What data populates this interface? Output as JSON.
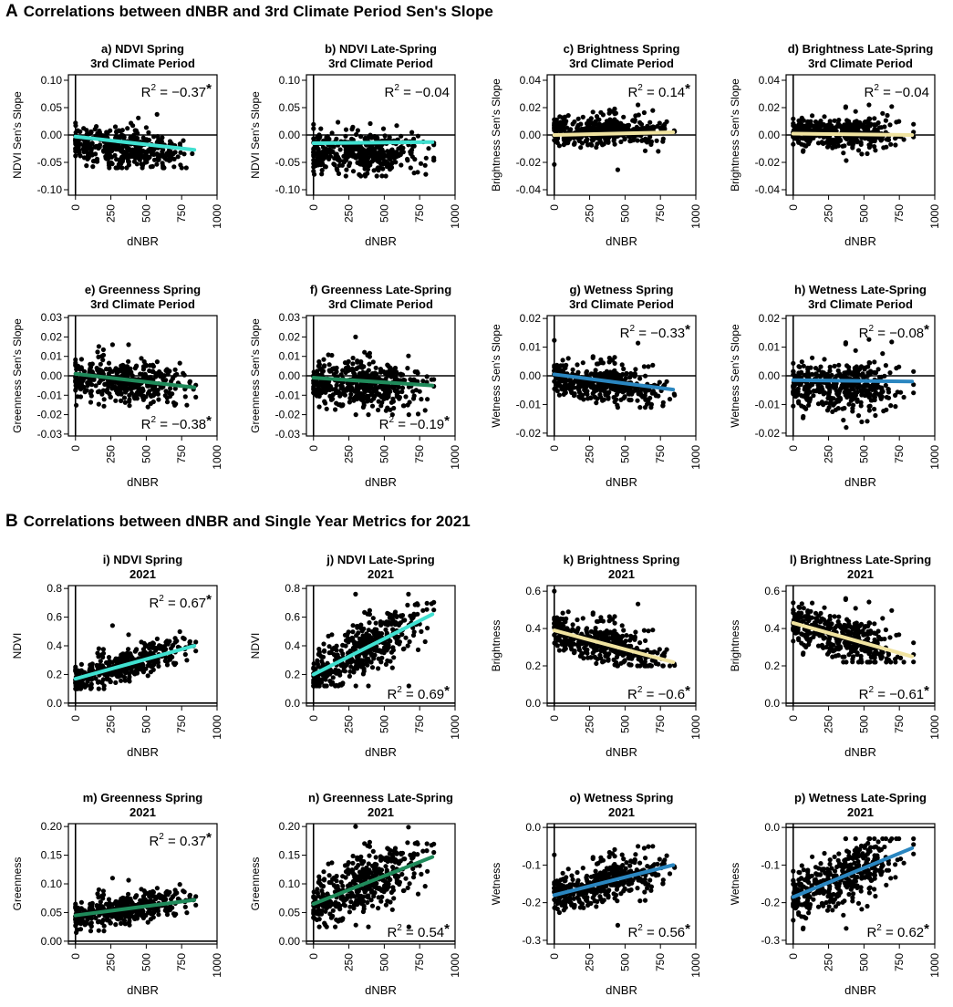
{
  "sections": [
    {
      "letter": "A",
      "title": "Correlations between dNBR and 3rd Climate Period Sen's Slope"
    },
    {
      "letter": "B",
      "title": "Correlations between dNBR and Single Year Metrics for 2021"
    }
  ],
  "colors": {
    "ndvi": "#40e0d0",
    "brightness": "#f0e3a0",
    "greenness": "#1f8a5a",
    "wetness": "#2a86c0",
    "points": "#000000"
  },
  "chart_data": [
    {
      "id": "a",
      "type": "scatter",
      "title": "a) NDVI Spring",
      "subtitle": "3rd Climate Period",
      "xlabel": "dNBR",
      "ylabel": "NDVI Sen's Slope",
      "xlim": [
        -50,
        1000
      ],
      "xticks": [
        0,
        250,
        500,
        750,
        1000
      ],
      "ylim": [
        -0.11,
        0.11
      ],
      "yticks": [
        -0.1,
        -0.05,
        0.0,
        0.05,
        0.1
      ],
      "ytick_labels": [
        "-0.10",
        "-0.05",
        "0.00",
        "0.05",
        "0.10"
      ],
      "hline": 0,
      "fit": {
        "x": [
          0,
          840
        ],
        "y": [
          -0.003,
          -0.027
        ]
      },
      "fit_color": "ndvi",
      "cloud": {
        "center": -0.012,
        "spread": 0.016,
        "upper": 0.06,
        "lower": -0.06
      },
      "r2_text": "R² = −0.37*",
      "r2_value": "−0.37",
      "significant": true,
      "r2_pos": "top-right"
    },
    {
      "id": "b",
      "type": "scatter",
      "title": "b) NDVI Late-Spring",
      "subtitle": "3rd Climate Period",
      "xlabel": "dNBR",
      "ylabel": "NDVI Sen's Slope",
      "xlim": [
        -50,
        1000
      ],
      "xticks": [
        0,
        250,
        500,
        750,
        1000
      ],
      "ylim": [
        -0.11,
        0.11
      ],
      "yticks": [
        -0.1,
        -0.05,
        0.0,
        0.05,
        0.1
      ],
      "ytick_labels": [
        "-0.10",
        "-0.05",
        "0.00",
        "0.05",
        "0.10"
      ],
      "hline": 0,
      "fit": {
        "x": [
          0,
          840
        ],
        "y": [
          -0.015,
          -0.013
        ]
      },
      "fit_color": "ndvi",
      "cloud": {
        "center": -0.018,
        "spread": 0.018,
        "upper": 0.04,
        "lower": -0.075
      },
      "r2_value": "−0.04",
      "significant": false,
      "r2_pos": "top-right"
    },
    {
      "id": "c",
      "type": "scatter",
      "title": "c) Brightness Spring",
      "subtitle": "3rd Climate Period",
      "xlabel": "dNBR",
      "ylabel": "Brightness Sen's Slope",
      "xlim": [
        -50,
        1000
      ],
      "xticks": [
        0,
        250,
        500,
        750,
        1000
      ],
      "ylim": [
        -0.044,
        0.044
      ],
      "yticks": [
        -0.04,
        -0.02,
        0.0,
        0.02,
        0.04
      ],
      "ytick_labels": [
        "-0.04",
        "-0.02",
        "0.00",
        "0.02",
        "0.04"
      ],
      "hline": 0,
      "fit": {
        "x": [
          0,
          840
        ],
        "y": [
          0.0,
          0.002
        ]
      },
      "fit_color": "brightness",
      "cloud": {
        "center": 0.002,
        "spread": 0.005,
        "upper": 0.022,
        "lower": -0.028
      },
      "r2_value": "0.14",
      "significant": true,
      "r2_pos": "top-right"
    },
    {
      "id": "d",
      "type": "scatter",
      "title": "d) Brightness Late-Spring",
      "subtitle": "3rd Climate Period",
      "xlabel": "dNBR",
      "ylabel": "Brightness Sen's Slope",
      "xlim": [
        -50,
        1000
      ],
      "xticks": [
        0,
        250,
        500,
        750,
        1000
      ],
      "ylim": [
        -0.044,
        0.044
      ],
      "yticks": [
        -0.04,
        -0.02,
        0.0,
        0.02,
        0.04
      ],
      "ytick_labels": [
        "-0.04",
        "-0.02",
        "0.00",
        "0.02",
        "0.04"
      ],
      "hline": 0,
      "fit": {
        "x": [
          0,
          840
        ],
        "y": [
          0.001,
          0.0
        ]
      },
      "fit_color": "brightness",
      "cloud": {
        "center": 0.001,
        "spread": 0.005,
        "upper": 0.032,
        "lower": -0.03
      },
      "r2_value": "−0.04",
      "significant": false,
      "r2_pos": "top-right"
    },
    {
      "id": "e",
      "type": "scatter",
      "title": "e) Greenness Spring",
      "subtitle": "3rd Climate Period",
      "xlabel": "dNBR",
      "ylabel": "Greenness Sen's Slope",
      "xlim": [
        -50,
        1000
      ],
      "xticks": [
        0,
        250,
        500,
        750,
        1000
      ],
      "ylim": [
        -0.031,
        0.031
      ],
      "yticks": [
        -0.03,
        -0.02,
        -0.01,
        0.0,
        0.01,
        0.02,
        0.03
      ],
      "ytick_labels": [
        "-0.03",
        "-0.02",
        "-0.01",
        "0.00",
        "0.01",
        "0.02",
        "0.03"
      ],
      "hline": 0,
      "fit": {
        "x": [
          0,
          840
        ],
        "y": [
          0.001,
          -0.006
        ]
      },
      "fit_color": "greenness",
      "cloud": {
        "center": -0.001,
        "spread": 0.005,
        "upper": 0.016,
        "lower": -0.016
      },
      "r2_value": "−0.38",
      "significant": true,
      "r2_pos": "bottom-right"
    },
    {
      "id": "f",
      "type": "scatter",
      "title": "f) Greenness Late-Spring",
      "subtitle": "3rd Climate Period",
      "xlabel": "dNBR",
      "ylabel": "Greenness Sen's Slope",
      "xlim": [
        -50,
        1000
      ],
      "xticks": [
        0,
        250,
        500,
        750,
        1000
      ],
      "ylim": [
        -0.031,
        0.031
      ],
      "yticks": [
        -0.03,
        -0.02,
        -0.01,
        0.0,
        0.01,
        0.02,
        0.03
      ],
      "ytick_labels": [
        "-0.03",
        "-0.02",
        "-0.01",
        "0.00",
        "0.01",
        "0.02",
        "0.03"
      ],
      "hline": 0,
      "fit": {
        "x": [
          0,
          840
        ],
        "y": [
          -0.001,
          -0.005
        ]
      },
      "fit_color": "greenness",
      "cloud": {
        "center": -0.002,
        "spread": 0.006,
        "upper": 0.02,
        "lower": -0.02
      },
      "r2_value": "−0.19",
      "significant": true,
      "r2_pos": "bottom-right"
    },
    {
      "id": "g",
      "type": "scatter",
      "title": "g) Wetness Spring",
      "subtitle": "3rd Climate Period",
      "xlabel": "dNBR",
      "ylabel": "Wetness Sen's Slope",
      "xlim": [
        -50,
        1000
      ],
      "xticks": [
        0,
        250,
        500,
        750,
        1000
      ],
      "ylim": [
        -0.021,
        0.021
      ],
      "yticks": [
        -0.02,
        -0.01,
        0.0,
        0.01,
        0.02
      ],
      "ytick_labels": [
        "-0.02",
        "-0.01",
        "0.00",
        "0.01",
        "0.02"
      ],
      "hline": 0,
      "fit": {
        "x": [
          0,
          840
        ],
        "y": [
          0.0005,
          -0.0048
        ]
      },
      "fit_color": "wetness",
      "cloud": {
        "center": -0.001,
        "spread": 0.003,
        "upper": 0.019,
        "lower": -0.011
      },
      "r2_value": "−0.33",
      "significant": true,
      "r2_pos": "top-right"
    },
    {
      "id": "h",
      "type": "scatter",
      "title": "h) Wetness Late-Spring",
      "subtitle": "3rd Climate Period",
      "xlabel": "dNBR",
      "ylabel": "Wetness Sen's Slope",
      "xlim": [
        -50,
        1000
      ],
      "xticks": [
        0,
        250,
        500,
        750,
        1000
      ],
      "ylim": [
        -0.021,
        0.021
      ],
      "yticks": [
        -0.02,
        -0.01,
        0.0,
        0.01,
        0.02
      ],
      "ytick_labels": [
        "-0.02",
        "-0.01",
        "0.00",
        "0.01",
        "0.02"
      ],
      "hline": 0,
      "fit": {
        "x": [
          0,
          840
        ],
        "y": [
          -0.0015,
          -0.002
        ]
      },
      "fit_color": "wetness",
      "cloud": {
        "center": -0.002,
        "spread": 0.004,
        "upper": 0.019,
        "lower": -0.018
      },
      "r2_value": "−0.08",
      "significant": true,
      "r2_pos": "top-right"
    },
    {
      "id": "i",
      "type": "scatter",
      "title": "i) NDVI Spring",
      "subtitle": "2021",
      "xlabel": "dNBR",
      "ylabel": "NDVI",
      "xlim": [
        -50,
        1000
      ],
      "xticks": [
        0,
        250,
        500,
        750,
        1000
      ],
      "ylim": [
        -0.02,
        0.82
      ],
      "yticks": [
        0.0,
        0.2,
        0.4,
        0.6,
        0.8
      ],
      "ytick_labels": [
        "0.0",
        "0.2",
        "0.4",
        "0.6",
        "0.8"
      ],
      "hline": 0,
      "fit": {
        "x": [
          0,
          840
        ],
        "y": [
          0.17,
          0.4
        ]
      },
      "fit_color": "ndvi",
      "cloud": {
        "center": 0,
        "spread": 0.05,
        "upper": 0.55,
        "lower": 0.1
      },
      "r2_value": "0.67",
      "significant": true,
      "r2_pos": "top-right"
    },
    {
      "id": "j",
      "type": "scatter",
      "title": "j) NDVI Late-Spring",
      "subtitle": "2021",
      "xlabel": "dNBR",
      "ylabel": "NDVI",
      "xlim": [
        -50,
        1000
      ],
      "xticks": [
        0,
        250,
        500,
        750,
        1000
      ],
      "ylim": [
        -0.02,
        0.82
      ],
      "yticks": [
        0.0,
        0.2,
        0.4,
        0.6,
        0.8
      ],
      "ytick_labels": [
        "0.0",
        "0.2",
        "0.4",
        "0.6",
        "0.8"
      ],
      "hline": 0,
      "fit": {
        "x": [
          0,
          840
        ],
        "y": [
          0.2,
          0.62
        ]
      },
      "fit_color": "ndvi",
      "cloud": {
        "center": 0,
        "spread": 0.09,
        "upper": 0.76,
        "lower": 0.12
      },
      "r2_value": "0.69",
      "significant": true,
      "r2_pos": "bottom-right"
    },
    {
      "id": "k",
      "type": "scatter",
      "title": "k) Brightness Spring",
      "subtitle": "2021",
      "xlabel": "dNBR",
      "ylabel": "Brightness",
      "xlim": [
        -50,
        1000
      ],
      "xticks": [
        0,
        250,
        500,
        750,
        1000
      ],
      "ylim": [
        -0.015,
        0.63
      ],
      "yticks": [
        0.0,
        0.2,
        0.4,
        0.6
      ],
      "ytick_labels": [
        "0.0",
        "0.2",
        "0.4",
        "0.6"
      ],
      "hline": 0,
      "fit": {
        "x": [
          0,
          840
        ],
        "y": [
          0.39,
          0.22
        ]
      },
      "fit_color": "brightness",
      "cloud": {
        "center": 0,
        "spread": 0.05,
        "upper": 0.6,
        "lower": 0.2
      },
      "r2_value": "−0.6",
      "significant": true,
      "r2_pos": "bottom-right"
    },
    {
      "id": "l",
      "type": "scatter",
      "title": "l) Brightness Late-Spring",
      "subtitle": "2021",
      "xlabel": "dNBR",
      "ylabel": "Brightness",
      "xlim": [
        -50,
        1000
      ],
      "xticks": [
        0,
        250,
        500,
        750,
        1000
      ],
      "ylim": [
        -0.015,
        0.63
      ],
      "yticks": [
        0.0,
        0.2,
        0.4,
        0.6
      ],
      "ytick_labels": [
        "0.0",
        "0.2",
        "0.4",
        "0.6"
      ],
      "hline": 0,
      "fit": {
        "x": [
          0,
          840
        ],
        "y": [
          0.43,
          0.25
        ]
      },
      "fit_color": "brightness",
      "cloud": {
        "center": 0,
        "spread": 0.055,
        "upper": 0.6,
        "lower": 0.22
      },
      "r2_value": "−0.61",
      "significant": true,
      "r2_pos": "bottom-right"
    },
    {
      "id": "m",
      "type": "scatter",
      "title": "m) Greenness Spring",
      "subtitle": "2021",
      "xlabel": "dNBR",
      "ylabel": "Greenness",
      "xlim": [
        -50,
        1000
      ],
      "xticks": [
        0,
        250,
        500,
        750,
        1000
      ],
      "ylim": [
        -0.005,
        0.205
      ],
      "yticks": [
        0.0,
        0.05,
        0.1,
        0.15,
        0.2
      ],
      "ytick_labels": [
        "0.00",
        "0.05",
        "0.10",
        "0.15",
        "0.20"
      ],
      "hline": 0,
      "fit": {
        "x": [
          0,
          840
        ],
        "y": [
          0.045,
          0.072
        ]
      },
      "fit_color": "greenness",
      "cloud": {
        "center": 0,
        "spread": 0.012,
        "upper": 0.11,
        "lower": 0.015
      },
      "r2_value": "0.37",
      "significant": true,
      "r2_pos": "top-right"
    },
    {
      "id": "n",
      "type": "scatter",
      "title": "n) Greenness Late-Spring",
      "subtitle": "2021",
      "xlabel": "dNBR",
      "ylabel": "Greenness",
      "xlim": [
        -50,
        1000
      ],
      "xticks": [
        0,
        250,
        500,
        750,
        1000
      ],
      "ylim": [
        -0.005,
        0.205
      ],
      "yticks": [
        0.0,
        0.05,
        0.1,
        0.15,
        0.2
      ],
      "ytick_labels": [
        "0.00",
        "0.05",
        "0.10",
        "0.15",
        "0.20"
      ],
      "hline": 0,
      "fit": {
        "x": [
          0,
          840
        ],
        "y": [
          0.065,
          0.147
        ]
      },
      "fit_color": "greenness",
      "cloud": {
        "center": 0,
        "spread": 0.025,
        "upper": 0.2,
        "lower": 0.025
      },
      "r2_value": "0.54",
      "significant": true,
      "r2_pos": "bottom-right"
    },
    {
      "id": "o",
      "type": "scatter",
      "title": "o) Wetness Spring",
      "subtitle": "2021",
      "xlabel": "dNBR",
      "ylabel": "Wetness",
      "xlim": [
        -50,
        1000
      ],
      "xticks": [
        0,
        250,
        500,
        750,
        1000
      ],
      "ylim": [
        -0.31,
        0.01
      ],
      "yticks": [
        -0.3,
        -0.2,
        -0.1,
        0.0
      ],
      "ytick_labels": [
        "-0.3",
        "-0.2",
        "-0.1",
        "0.0"
      ],
      "hline": 0,
      "fit": {
        "x": [
          0,
          840
        ],
        "y": [
          -0.18,
          -0.1
        ]
      },
      "fit_color": "wetness",
      "cloud": {
        "center": 0,
        "spread": 0.025,
        "upper": -0.05,
        "lower": -0.26
      },
      "r2_value": "0.56",
      "significant": true,
      "r2_pos": "bottom-right"
    },
    {
      "id": "p",
      "type": "scatter",
      "title": "p) Wetness Late-Spring",
      "subtitle": "2021",
      "xlabel": "dNBR",
      "ylabel": "Wetness",
      "xlim": [
        -50,
        1000
      ],
      "xticks": [
        0,
        250,
        500,
        750,
        1000
      ],
      "ylim": [
        -0.31,
        0.01
      ],
      "yticks": [
        -0.3,
        -0.2,
        -0.1,
        0.0
      ],
      "ytick_labels": [
        "-0.3",
        "-0.2",
        "-0.1",
        "0.0"
      ],
      "hline": 0,
      "fit": {
        "x": [
          0,
          840
        ],
        "y": [
          -0.185,
          -0.055
        ]
      },
      "fit_color": "wetness",
      "cloud": {
        "center": 0,
        "spread": 0.035,
        "upper": -0.03,
        "lower": -0.27
      },
      "r2_value": "0.62",
      "significant": true,
      "r2_pos": "bottom-right"
    }
  ]
}
